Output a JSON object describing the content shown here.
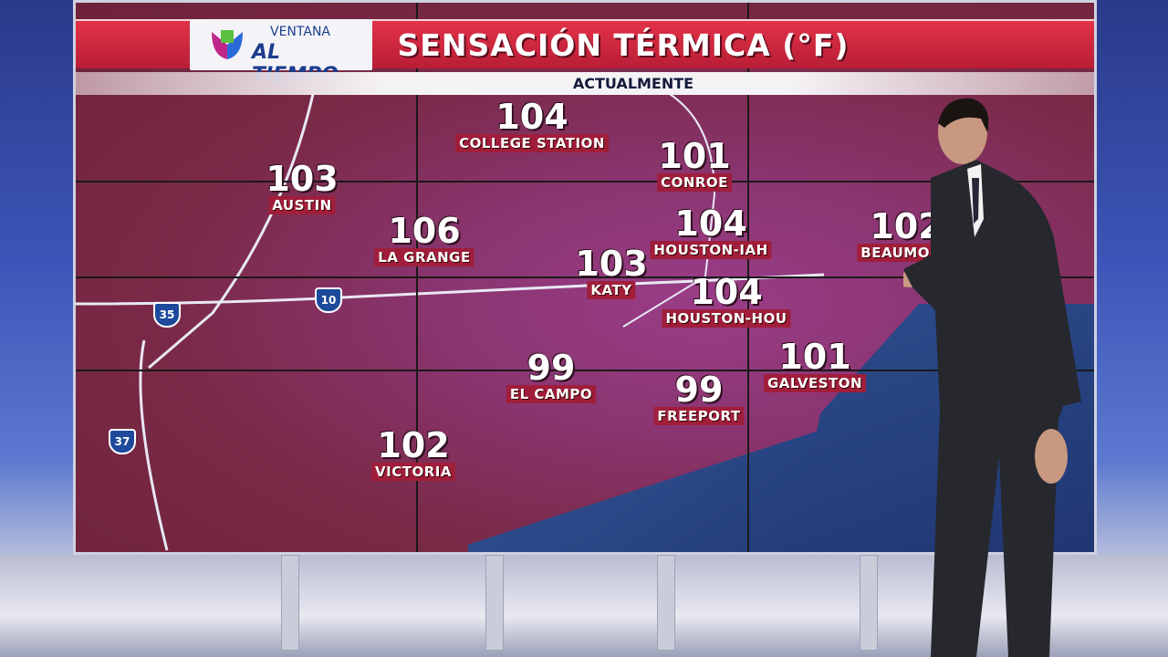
{
  "banner": {
    "brand_line1": "VENTANA",
    "brand_line2": "AL TIEMPO",
    "title": "SENSACIÓN TÉRMICA (°F)",
    "subtitle": "ACTUALMENTE"
  },
  "cities": [
    {
      "name": "COLLEGE STATION",
      "temp": "104"
    },
    {
      "name": "CONROE",
      "temp": "101"
    },
    {
      "name": "AUSTIN",
      "temp": "103"
    },
    {
      "name": "LA GRANGE",
      "temp": "106"
    },
    {
      "name": "HOUSTON-IAH",
      "temp": "104"
    },
    {
      "name": "BEAUMONT",
      "temp": "102"
    },
    {
      "name": "KATY",
      "temp": "103"
    },
    {
      "name": "HOUSTON-HOU",
      "temp": "104"
    },
    {
      "name": "GALVESTON",
      "temp": "101"
    },
    {
      "name": "EL CAMPO",
      "temp": "99"
    },
    {
      "name": "FREEPORT",
      "temp": "99"
    },
    {
      "name": "VICTORIA",
      "temp": "102"
    }
  ],
  "highways": [
    {
      "label": "35"
    },
    {
      "label": "10"
    },
    {
      "label": "37"
    }
  ],
  "colors": {
    "banner_red": "#c8263e",
    "map_heat": "#8a3570",
    "water": "#2d4c8c",
    "label_bg": "#a01e3a"
  }
}
